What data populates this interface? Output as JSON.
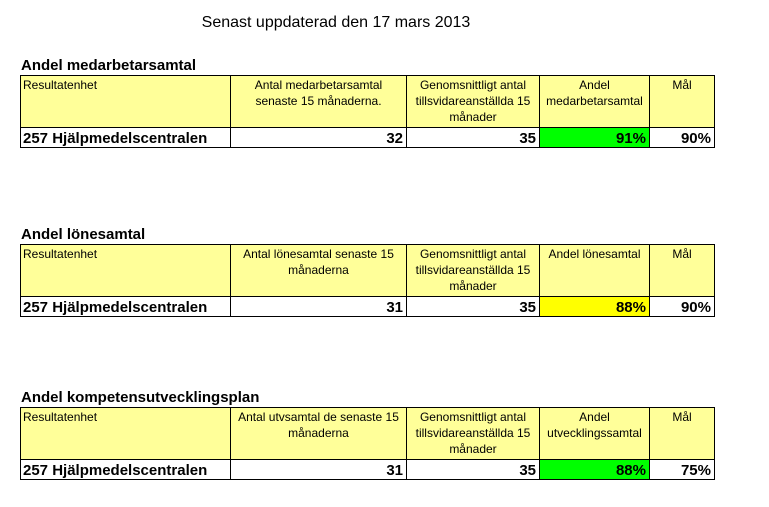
{
  "header": {
    "updated": "Senast uppdaterad den 17 mars 2013"
  },
  "sections": [
    {
      "title": "Andel medarbetarsamtal",
      "col_unit": "Resultatenhet",
      "col_count": "Antal medarbetarsamtal senaste 15 månaderna.",
      "col_avg": "Genomsnittligt antal tillsvidareanställda 15 månader",
      "col_share": "Andel medarbetarsamtal",
      "col_goal": "Mål",
      "unit": "257 Hjälpmedelscentralen",
      "count": "32",
      "avg": "35",
      "share": "91%",
      "goal": "90%",
      "share_color": "#00ff00"
    },
    {
      "title": "Andel lönesamtal",
      "col_unit": "Resultatenhet",
      "col_count": "Antal lönesamtal senaste 15 månaderna",
      "col_avg": "Genomsnittligt antal tillsvidareanställda 15 månader",
      "col_share": "Andel lönesamtal",
      "col_goal": "Mål",
      "unit": "257 Hjälpmedelscentralen",
      "count": "31",
      "avg": "35",
      "share": "88%",
      "goal": "90%",
      "share_color": "#ffff00"
    },
    {
      "title": "Andel kompetensutvecklingsplan",
      "col_unit": "Resultatenhet",
      "col_count": "Antal utvsamtal de senaste 15 månaderna",
      "col_avg": "Genomsnittligt antal tillsvidareanställda 15 månader",
      "col_share": "Andel utvecklingssamtal",
      "col_goal": "Mål",
      "unit": "257 Hjälpmedelscentralen",
      "count": "31",
      "avg": "35",
      "share": "88%",
      "goal": "75%",
      "share_color": "#00ff00"
    }
  ]
}
